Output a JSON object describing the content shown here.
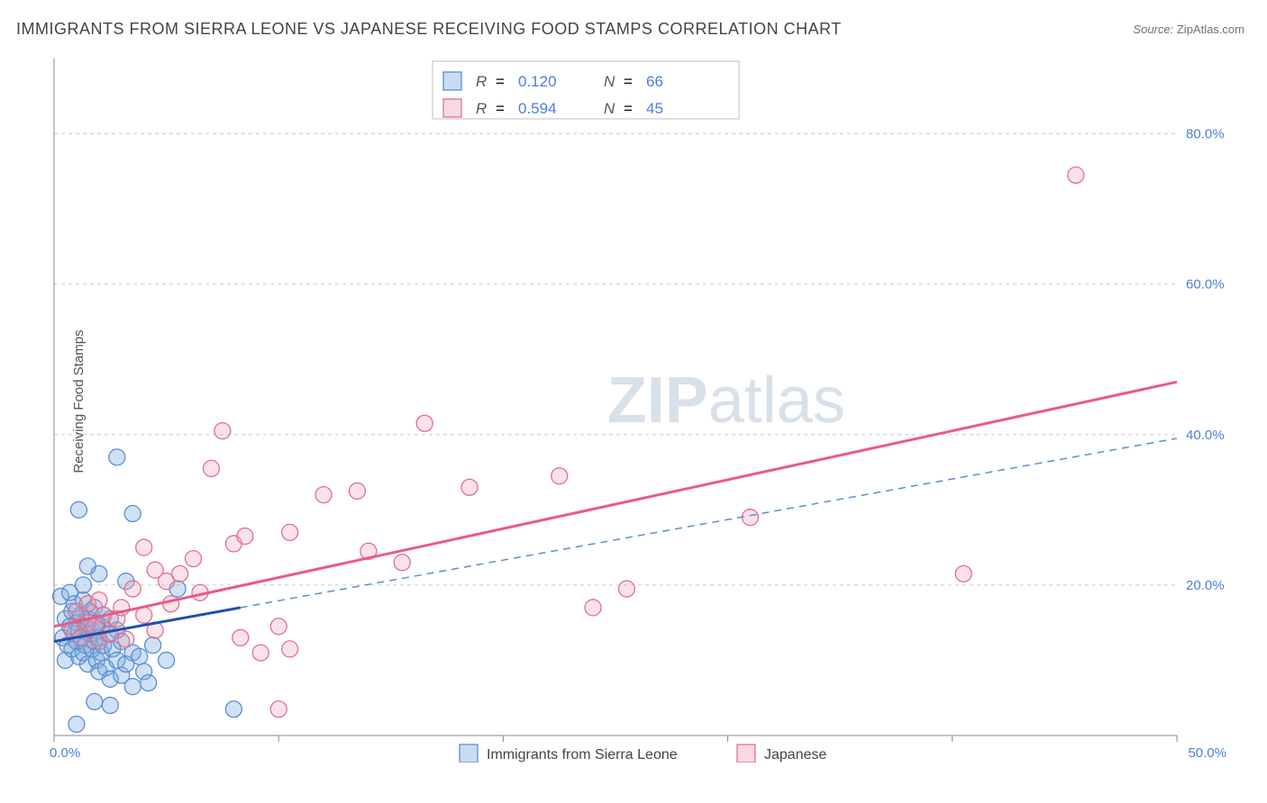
{
  "title": "IMMIGRANTS FROM SIERRA LEONE VS JAPANESE RECEIVING FOOD STAMPS CORRELATION CHART",
  "source": {
    "label": "Source:",
    "value": "ZipAtlas.com"
  },
  "yaxis_label": "Receiving Food Stamps",
  "watermark": {
    "zip": "ZIP",
    "atlas": "atlas"
  },
  "chart": {
    "type": "scatter",
    "xlim": [
      0,
      50
    ],
    "ylim": [
      0,
      90
    ],
    "x_ticks": [
      0,
      10,
      20,
      30,
      40,
      50
    ],
    "x_tick_labels": [
      "0.0%",
      "",
      "",
      "",
      "",
      "50.0%"
    ],
    "y_ticks": [
      20,
      40,
      60,
      80
    ],
    "y_tick_labels": [
      "20.0%",
      "40.0%",
      "60.0%",
      "80.0%"
    ],
    "background_color": "#ffffff",
    "grid_color": "#cccccc",
    "axis_color": "#888888",
    "tick_label_color": "#4a7fd8",
    "marker_radius": 9,
    "series": [
      {
        "name": "Immigrants from Sierra Leone",
        "marker_fill": "rgba(120,168,224,0.35)",
        "marker_stroke": "#5a8fd0",
        "trend_stroke": "#1d4fb0",
        "trend_dash_stroke": "#5a8fd0",
        "R": "0.120",
        "N": "66",
        "trend": {
          "x1": 0,
          "y1": 12.5,
          "x2": 8.3,
          "y2": 17.0
        },
        "trend_ext": {
          "x1": 8.3,
          "y1": 17.0,
          "x2": 50,
          "y2": 39.5
        },
        "points": [
          [
            0.3,
            18.5
          ],
          [
            0.4,
            13.0
          ],
          [
            0.5,
            10.0
          ],
          [
            0.5,
            15.5
          ],
          [
            0.6,
            12.0
          ],
          [
            0.7,
            19.0
          ],
          [
            0.7,
            14.5
          ],
          [
            0.8,
            16.5
          ],
          [
            0.8,
            11.5
          ],
          [
            0.9,
            13.5
          ],
          [
            0.9,
            17.5
          ],
          [
            1.0,
            12.5
          ],
          [
            1.0,
            15.0
          ],
          [
            1.1,
            14.0
          ],
          [
            1.1,
            10.5
          ],
          [
            1.2,
            16.0
          ],
          [
            1.2,
            13.0
          ],
          [
            1.3,
            11.0
          ],
          [
            1.3,
            18.0
          ],
          [
            1.4,
            14.5
          ],
          [
            1.4,
            12.0
          ],
          [
            1.5,
            15.5
          ],
          [
            1.5,
            9.5
          ],
          [
            1.6,
            13.5
          ],
          [
            1.6,
            16.5
          ],
          [
            1.7,
            11.5
          ],
          [
            1.7,
            14.0
          ],
          [
            1.8,
            12.5
          ],
          [
            1.8,
            17.0
          ],
          [
            1.9,
            10.0
          ],
          [
            1.9,
            15.0
          ],
          [
            2.0,
            13.0
          ],
          [
            2.0,
            8.5
          ],
          [
            2.1,
            14.5
          ],
          [
            2.1,
            11.0
          ],
          [
            2.2,
            16.0
          ],
          [
            2.2,
            12.0
          ],
          [
            2.3,
            9.0
          ],
          [
            2.4,
            13.5
          ],
          [
            2.5,
            7.5
          ],
          [
            2.5,
            15.5
          ],
          [
            2.6,
            11.5
          ],
          [
            2.8,
            10.0
          ],
          [
            2.8,
            14.0
          ],
          [
            3.0,
            8.0
          ],
          [
            3.0,
            12.5
          ],
          [
            3.2,
            9.5
          ],
          [
            3.5,
            11.0
          ],
          [
            3.5,
            6.5
          ],
          [
            3.8,
            10.5
          ],
          [
            4.0,
            8.5
          ],
          [
            4.2,
            7.0
          ],
          [
            4.4,
            12.0
          ],
          [
            3.2,
            20.5
          ],
          [
            2.8,
            37.0
          ],
          [
            2.0,
            21.5
          ],
          [
            1.5,
            22.5
          ],
          [
            1.3,
            20.0
          ],
          [
            1.1,
            30.0
          ],
          [
            3.5,
            29.5
          ],
          [
            5.5,
            19.5
          ],
          [
            5.0,
            10.0
          ],
          [
            1.8,
            4.5
          ],
          [
            2.5,
            4.0
          ],
          [
            8.0,
            3.5
          ],
          [
            1.0,
            1.5
          ]
        ]
      },
      {
        "name": "Japanese",
        "marker_fill": "rgba(240,160,180,0.30)",
        "marker_stroke": "#e07090",
        "trend_stroke": "#e85a8a",
        "R": "0.594",
        "N": "45",
        "trend": {
          "x1": 0,
          "y1": 14.5,
          "x2": 50,
          "y2": 47.0
        },
        "points": [
          [
            0.8,
            14.0
          ],
          [
            1.0,
            16.5
          ],
          [
            1.2,
            13.0
          ],
          [
            1.5,
            15.0
          ],
          [
            1.5,
            17.5
          ],
          [
            1.8,
            14.5
          ],
          [
            2.0,
            18.0
          ],
          [
            2.0,
            12.5
          ],
          [
            2.2,
            16.0
          ],
          [
            2.5,
            13.5
          ],
          [
            2.8,
            15.5
          ],
          [
            3.0,
            17.0
          ],
          [
            3.2,
            12.8
          ],
          [
            3.5,
            19.5
          ],
          [
            4.0,
            25.0
          ],
          [
            4.0,
            16.0
          ],
          [
            4.5,
            22.0
          ],
          [
            4.5,
            14.0
          ],
          [
            5.0,
            20.5
          ],
          [
            5.2,
            17.5
          ],
          [
            5.6,
            21.5
          ],
          [
            6.2,
            23.5
          ],
          [
            6.5,
            19.0
          ],
          [
            7.0,
            35.5
          ],
          [
            7.5,
            40.5
          ],
          [
            8.0,
            25.5
          ],
          [
            8.3,
            13.0
          ],
          [
            8.5,
            26.5
          ],
          [
            9.2,
            11.0
          ],
          [
            10.0,
            14.5
          ],
          [
            10.5,
            27.0
          ],
          [
            10.5,
            11.5
          ],
          [
            12.0,
            32.0
          ],
          [
            13.5,
            32.5
          ],
          [
            14.0,
            24.5
          ],
          [
            15.5,
            23.0
          ],
          [
            16.5,
            41.5
          ],
          [
            18.5,
            33.0
          ],
          [
            22.5,
            34.5
          ],
          [
            24.0,
            17.0
          ],
          [
            25.5,
            19.5
          ],
          [
            31.0,
            29.0
          ],
          [
            40.5,
            21.5
          ],
          [
            45.5,
            74.5
          ],
          [
            10.0,
            3.5
          ]
        ]
      }
    ]
  },
  "stats_legend": {
    "rows": [
      {
        "swatch": "blue",
        "R_label": "R",
        "R": "0.120",
        "N_label": "N",
        "N": "66"
      },
      {
        "swatch": "pink",
        "R_label": "R",
        "R": "0.594",
        "N_label": "N",
        "N": "45"
      }
    ]
  },
  "bottom_legend": {
    "items": [
      {
        "swatch": "blue",
        "label": "Immigrants from Sierra Leone"
      },
      {
        "swatch": "pink",
        "label": "Japanese"
      }
    ]
  }
}
